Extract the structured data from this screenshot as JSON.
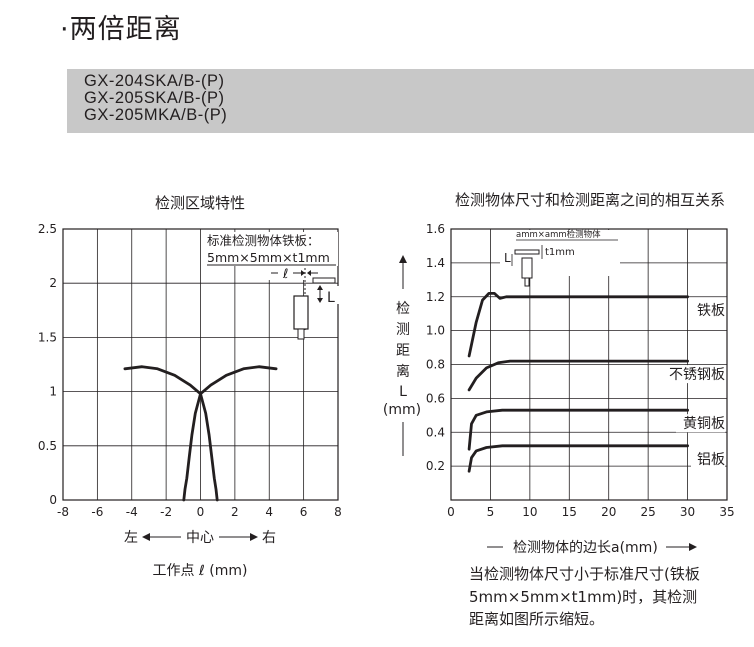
{
  "page": {
    "title": "·两倍距离"
  },
  "models": [
    "GX-204SKA/B-(P)",
    "GX-205SKA/B-(P)",
    "GX-205MKA/B-(P)"
  ],
  "chart_data": [
    {
      "type": "line",
      "title": "检测区域特性",
      "xlim": [
        -8,
        8
      ],
      "ylim": [
        0,
        2.5
      ],
      "x_ticks": [
        -8,
        -6,
        -4,
        -2,
        0,
        2,
        4,
        6,
        8
      ],
      "y_ticks": [
        0,
        0.5,
        1,
        1.5,
        2,
        2.5
      ],
      "y_tick_labels": [
        "0",
        "0.5",
        "1",
        "1.5",
        "2",
        "2.5"
      ],
      "grid": true,
      "x_direction": {
        "left": "左",
        "center": "中心",
        "right": "右"
      },
      "xlabel": "工作点 ℓ (mm)",
      "annotation": {
        "text": [
          "标准检测物体铁板：",
          "5mm×5mm×t1mm"
        ],
        "symbols": [
          "ℓ",
          "L"
        ]
      },
      "series": [
        {
          "x": [
            -4.4,
            -3.4,
            -2.5,
            -1.5,
            -0.6,
            0.0
          ],
          "y": [
            1.21,
            1.23,
            1.21,
            1.15,
            1.06,
            0.98
          ]
        },
        {
          "x": [
            0.0,
            0.6,
            1.5,
            2.5,
            3.4,
            4.4
          ],
          "y": [
            0.98,
            1.06,
            1.15,
            1.21,
            1.23,
            1.21
          ]
        },
        {
          "x": [
            0.0,
            -0.3,
            -0.5,
            -0.65,
            -0.8,
            -0.9,
            -0.97
          ],
          "y": [
            0.98,
            0.8,
            0.6,
            0.4,
            0.2,
            0.1,
            0.0
          ]
        },
        {
          "x": [
            0.0,
            0.3,
            0.5,
            0.65,
            0.8,
            0.9,
            0.97
          ],
          "y": [
            0.98,
            0.8,
            0.6,
            0.4,
            0.2,
            0.1,
            0.0
          ]
        }
      ]
    },
    {
      "type": "line",
      "title": "检测物体尺寸和检测距离之间的相互关系",
      "xlim": [
        0,
        35
      ],
      "ylim": [
        0,
        1.6
      ],
      "x_ticks": [
        0,
        5,
        10,
        15,
        20,
        25,
        30,
        35
      ],
      "y_ticks": [
        0.2,
        0.4,
        0.6,
        0.8,
        1.0,
        1.2,
        1.4,
        1.6
      ],
      "y_tick_labels": [
        "0.2",
        "0.4",
        "0.6",
        "0.8",
        "1.0",
        "1.2",
        "1.4",
        "1.6"
      ],
      "grid": true,
      "ylabel": [
        "检",
        "测",
        "距",
        "离",
        "L",
        "(mm)"
      ],
      "xlabel": "检测物体的边长a(mm)",
      "annotation": {
        "text": [
          "amm×amm检测物体",
          "t1mm"
        ],
        "symbols": [
          "L"
        ]
      },
      "series": [
        {
          "name": "铁板",
          "x": [
            2.3,
            3.2,
            4.0,
            4.8,
            5.5,
            6.2,
            7.0,
            30
          ],
          "y": [
            0.85,
            1.05,
            1.18,
            1.22,
            1.22,
            1.19,
            1.2,
            1.2
          ]
        },
        {
          "name": "不锈钢板",
          "x": [
            2.3,
            3.2,
            4.5,
            6.0,
            7.5,
            9.0,
            30
          ],
          "y": [
            0.65,
            0.72,
            0.78,
            0.81,
            0.82,
            0.82,
            0.82
          ]
        },
        {
          "name": "黄铜板",
          "x": [
            2.3,
            2.6,
            3.2,
            4.5,
            6.5,
            9.0,
            30
          ],
          "y": [
            0.3,
            0.45,
            0.5,
            0.52,
            0.53,
            0.53,
            0.53
          ]
        },
        {
          "name": "铝板",
          "x": [
            2.3,
            2.6,
            3.2,
            4.5,
            6.5,
            9.0,
            30
          ],
          "y": [
            0.17,
            0.25,
            0.29,
            0.31,
            0.32,
            0.32,
            0.32
          ]
        }
      ]
    }
  ],
  "caption": [
    "当检测物体尺寸小于标准尺寸(铁板",
    "5mm×5mm×t1mm)时，其检测",
    "距离如图所示缩短。"
  ]
}
